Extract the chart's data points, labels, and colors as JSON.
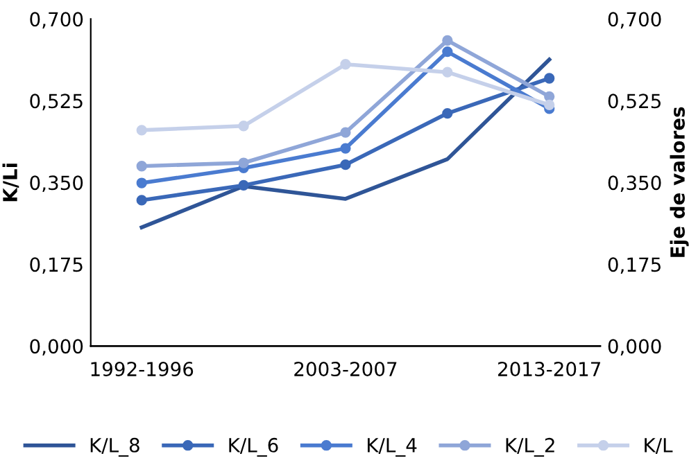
{
  "chart_data": {
    "type": "line",
    "ylabel": "K/Li",
    "y2label": "Eje de valores",
    "categories": [
      "1992-1996",
      null,
      "2003-2007",
      null,
      "2013-2017"
    ],
    "series": [
      {
        "name": "K/L_8",
        "color": "#2f5597",
        "marker": "none",
        "values": [
          0.254,
          0.342,
          0.315,
          0.4,
          0.613
        ]
      },
      {
        "name": "K/L_6",
        "color": "#3a68b8",
        "marker": "circle",
        "values": [
          0.312,
          0.344,
          0.388,
          0.498,
          0.573
        ]
      },
      {
        "name": "K/L_4",
        "color": "#4a7bd0",
        "marker": "circle",
        "values": [
          0.349,
          0.381,
          0.423,
          0.63,
          0.508
        ]
      },
      {
        "name": "K/L_2",
        "color": "#8fa6d8",
        "marker": "circle",
        "values": [
          0.385,
          0.392,
          0.457,
          0.654,
          0.534
        ]
      },
      {
        "name": "K/L",
        "color": "#c5d0ea",
        "marker": "circle",
        "values": [
          0.462,
          0.471,
          0.603,
          0.586,
          0.516
        ]
      }
    ],
    "ylim": [
      0,
      0.7
    ],
    "yticks": [
      {
        "value": 0,
        "label": "0,000"
      },
      {
        "value": 0.175,
        "label": "0,175"
      },
      {
        "value": 0.35,
        "label": "0,350"
      },
      {
        "value": 0.525,
        "label": "0,525"
      },
      {
        "value": 0.7,
        "label": "0,700"
      }
    ],
    "y2lim": [
      0,
      0.7
    ],
    "y2ticks": [
      {
        "value": 0,
        "label": "0,000"
      },
      {
        "value": 0.175,
        "label": "0,175"
      },
      {
        "value": 0.35,
        "label": "0,350"
      },
      {
        "value": 0.525,
        "label": "0,525"
      },
      {
        "value": 0.7,
        "label": "0,700"
      }
    ],
    "grid": false,
    "legend": "bottom",
    "line_style": "solid"
  }
}
